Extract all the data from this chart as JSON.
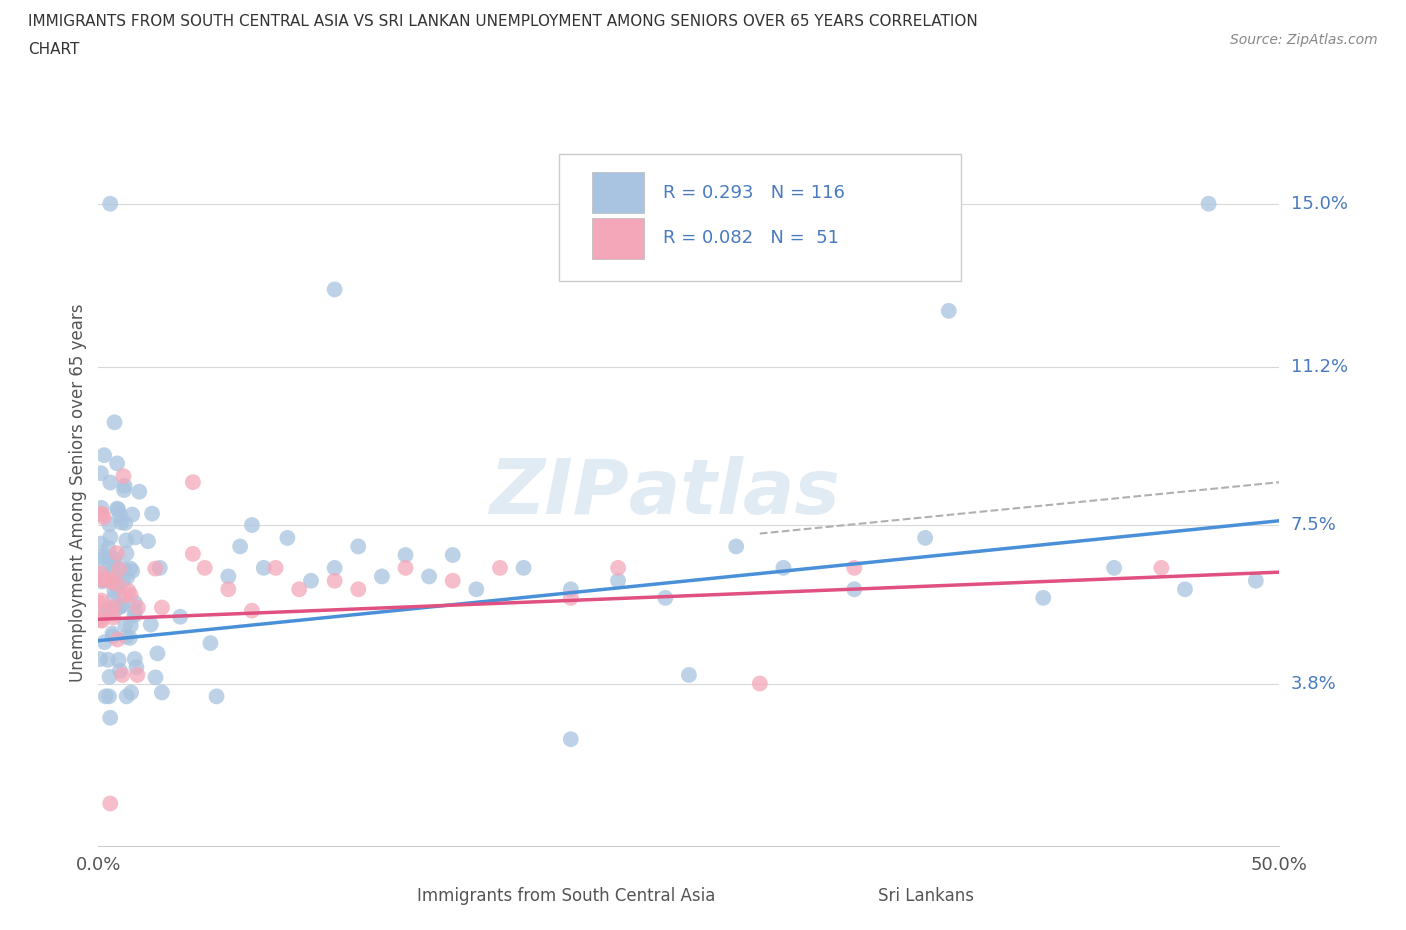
{
  "title_line1": "IMMIGRANTS FROM SOUTH CENTRAL ASIA VS SRI LANKAN UNEMPLOYMENT AMONG SENIORS OVER 65 YEARS CORRELATION",
  "title_line2": "CHART",
  "source_text": "Source: ZipAtlas.com",
  "ylabel": "Unemployment Among Seniors over 65 years",
  "xlim": [
    0.0,
    0.5
  ],
  "ylim": [
    0.0,
    0.165
  ],
  "xtick_labels": [
    "0.0%",
    "50.0%"
  ],
  "ytick_labels": [
    "3.8%",
    "7.5%",
    "11.2%",
    "15.0%"
  ],
  "ytick_values": [
    0.038,
    0.075,
    0.112,
    0.15
  ],
  "color_blue": "#a8c4e0",
  "color_pink": "#f4a7b9",
  "line_color_blue": "#4a90d9",
  "line_color_pink": "#e05080",
  "line_color_dashed": "#b0b0b0",
  "background_color": "#ffffff",
  "grid_color": "#d8d8d8",
  "legend_text_color": "#4a7bbf",
  "blue_line_x0": 0.0,
  "blue_line_y0": 0.048,
  "blue_line_x1": 0.5,
  "blue_line_y1": 0.076,
  "pink_line_x0": 0.0,
  "pink_line_y0": 0.053,
  "pink_line_x1": 0.5,
  "pink_line_y1": 0.064,
  "dash_line_x0": 0.28,
  "dash_line_y0": 0.073,
  "dash_line_x1": 0.5,
  "dash_line_y1": 0.085,
  "watermark": "ZIPatlas"
}
